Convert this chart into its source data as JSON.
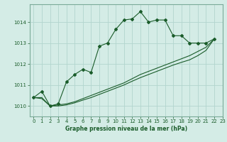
{
  "title": "Graphe pression niveau de la mer (hPa)",
  "background_color": "#d4ece6",
  "grid_color": "#b2d5ce",
  "line_color": "#1a5c2a",
  "spine_color": "#7aaa99",
  "xlim": [
    -0.5,
    23
  ],
  "ylim": [
    1009.5,
    1014.85
  ],
  "yticks": [
    1010,
    1011,
    1012,
    1013,
    1014
  ],
  "xticks": [
    0,
    1,
    2,
    3,
    4,
    5,
    6,
    7,
    8,
    9,
    10,
    11,
    12,
    13,
    14,
    15,
    16,
    17,
    18,
    19,
    20,
    21,
    22,
    23
  ],
  "s1_x": [
    0,
    1,
    2,
    3,
    4,
    5,
    6,
    7,
    8,
    9,
    10,
    11,
    12,
    13,
    14,
    15,
    16,
    17,
    18,
    19,
    20,
    21,
    22
  ],
  "s1_y": [
    1010.4,
    1010.7,
    1010.0,
    1010.1,
    1011.15,
    1011.5,
    1011.75,
    1011.6,
    1012.85,
    1013.0,
    1013.65,
    1014.1,
    1014.15,
    1014.5,
    1014.0,
    1014.1,
    1014.1,
    1013.35,
    1013.35,
    1013.0,
    1013.0,
    1013.0,
    1013.2
  ],
  "s2_x": [
    0,
    1,
    2,
    3,
    4,
    5,
    6,
    7,
    8,
    9,
    10,
    11,
    12,
    13,
    14,
    15,
    16,
    17,
    18,
    19,
    20,
    21,
    22
  ],
  "s2_y": [
    1010.4,
    1010.4,
    1010.0,
    1010.05,
    1010.1,
    1010.2,
    1010.35,
    1010.5,
    1010.65,
    1010.8,
    1010.95,
    1011.1,
    1011.3,
    1011.5,
    1011.65,
    1011.8,
    1011.95,
    1012.1,
    1012.25,
    1012.4,
    1012.6,
    1012.8,
    1013.2
  ],
  "s3_x": [
    0,
    1,
    2,
    3,
    4,
    5,
    6,
    7,
    8,
    9,
    10,
    11,
    12,
    13,
    14,
    15,
    16,
    17,
    18,
    19,
    20,
    21,
    22
  ],
  "s3_y": [
    1010.4,
    1010.35,
    1010.0,
    1010.0,
    1010.05,
    1010.15,
    1010.28,
    1010.4,
    1010.55,
    1010.7,
    1010.85,
    1011.0,
    1011.18,
    1011.35,
    1011.5,
    1011.65,
    1011.8,
    1011.95,
    1012.08,
    1012.2,
    1012.4,
    1012.65,
    1013.2
  ]
}
